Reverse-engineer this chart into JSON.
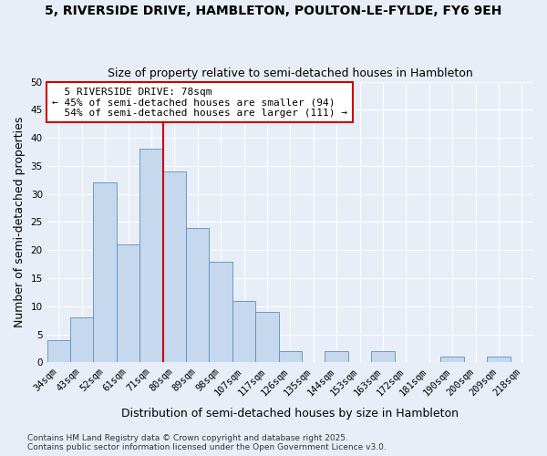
{
  "title": "5, RIVERSIDE DRIVE, HAMBLETON, POULTON-LE-FYLDE, FY6 9EH",
  "subtitle": "Size of property relative to semi-detached houses in Hambleton",
  "xlabel": "Distribution of semi-detached houses by size in Hambleton",
  "ylabel": "Number of semi-detached properties",
  "categories": [
    "34sqm",
    "43sqm",
    "52sqm",
    "61sqm",
    "71sqm",
    "80sqm",
    "89sqm",
    "98sqm",
    "107sqm",
    "117sqm",
    "126sqm",
    "135sqm",
    "144sqm",
    "153sqm",
    "163sqm",
    "172sqm",
    "181sqm",
    "190sqm",
    "200sqm",
    "209sqm",
    "218sqm"
  ],
  "values": [
    4,
    8,
    32,
    21,
    38,
    34,
    24,
    18,
    11,
    9,
    2,
    0,
    2,
    0,
    2,
    0,
    0,
    1,
    0,
    1,
    0
  ],
  "bar_color": "#c5d8ed",
  "bar_edge_color": "#5a8fc0",
  "bg_color": "#e8eef7",
  "grid_color": "#ffffff",
  "property_label": "5 RIVERSIDE DRIVE: 78sqm",
  "smaller_pct": 45,
  "smaller_count": 94,
  "larger_pct": 54,
  "larger_count": 111,
  "vline_x_index": 5,
  "vline_color": "#cc0000",
  "annotation_box_color": "#cc0000",
  "ylim": [
    0,
    50
  ],
  "yticks": [
    0,
    5,
    10,
    15,
    20,
    25,
    30,
    35,
    40,
    45,
    50
  ],
  "footer": "Contains HM Land Registry data © Crown copyright and database right 2025.\nContains public sector information licensed under the Open Government Licence v3.0.",
  "title_fontsize": 10,
  "subtitle_fontsize": 9,
  "axis_label_fontsize": 9,
  "tick_fontsize": 7.5,
  "footer_fontsize": 6.5,
  "annotation_fontsize": 8
}
